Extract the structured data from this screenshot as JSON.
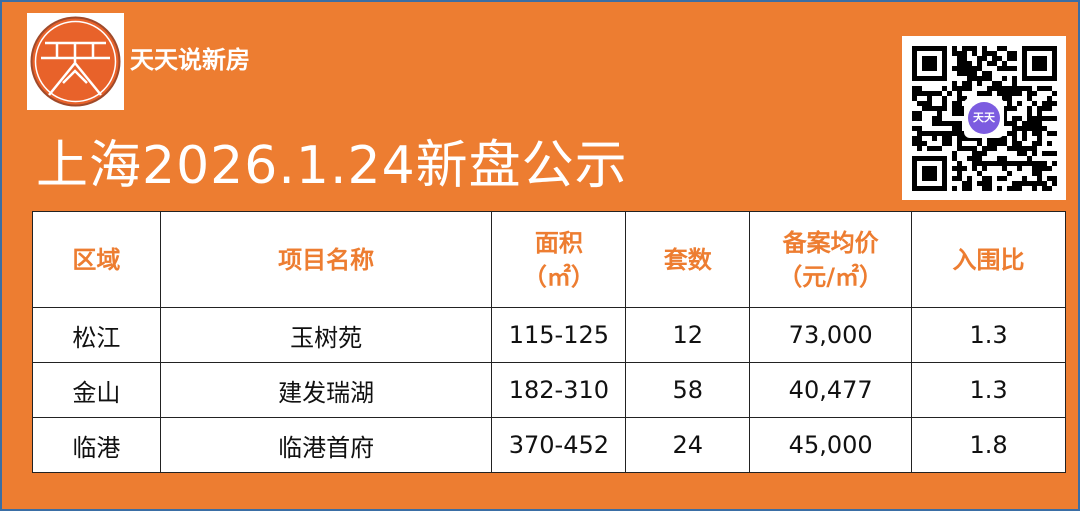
{
  "brand": {
    "name": "天天说新房",
    "logo_text": "天"
  },
  "title": "上海2026.1.24新盘公示",
  "qr": {
    "badge": "天天"
  },
  "table": {
    "headers": [
      [
        "区域"
      ],
      [
        "项目名称"
      ],
      [
        "面积",
        "（㎡）"
      ],
      [
        "套数"
      ],
      [
        "备案均价",
        "（元/㎡）"
      ],
      [
        "入围比"
      ]
    ],
    "rows": [
      [
        "松江",
        "玉树苑",
        "115-125",
        "12",
        "73,000",
        "1.3"
      ],
      [
        "金山",
        "建发瑞湖",
        "182-310",
        "58",
        "40,477",
        "1.3"
      ],
      [
        "临港",
        "临港首府",
        "370-452",
        "24",
        "45,000",
        "1.8"
      ]
    ]
  },
  "colors": {
    "background": "#ED7D31",
    "header_text": "#ED7D31"
  }
}
